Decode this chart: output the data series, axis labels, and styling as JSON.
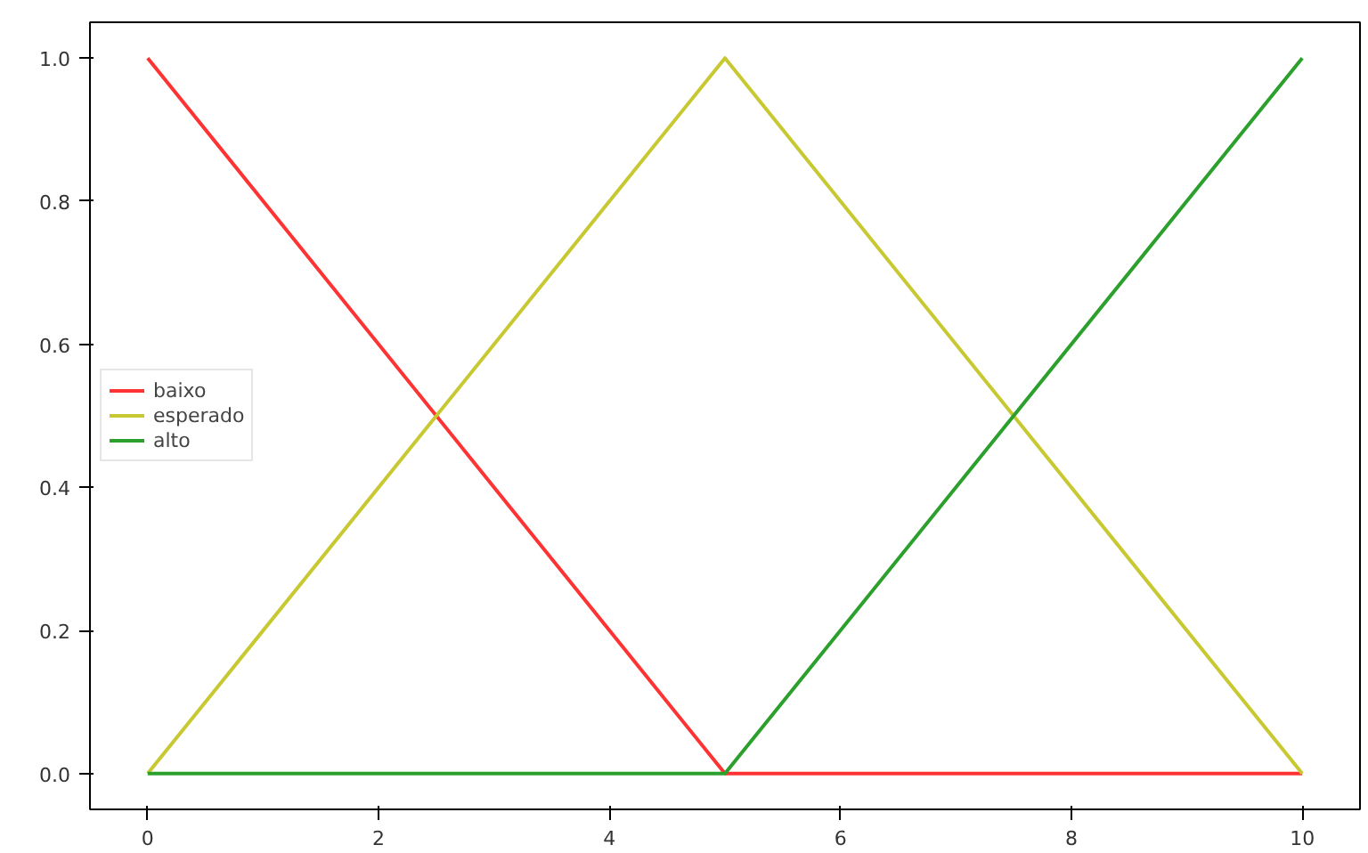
{
  "chart_data": {
    "type": "line",
    "x": [
      0,
      5,
      10
    ],
    "series": [
      {
        "name": "baixo",
        "color": "#ff3333",
        "values": [
          1,
          0,
          0
        ]
      },
      {
        "name": "esperado",
        "color": "#c8c832",
        "values": [
          0,
          1,
          0
        ]
      },
      {
        "name": "alto",
        "color": "#2ca02c",
        "values": [
          0,
          0,
          1
        ]
      }
    ],
    "xlim": [
      -0.5,
      10.5
    ],
    "ylim": [
      -0.05,
      1.05
    ],
    "xticks": [
      0,
      2,
      4,
      6,
      8,
      10
    ],
    "yticks": [
      {
        "value": 0,
        "label": "0.0"
      },
      {
        "value": 0.2,
        "label": "0.2"
      },
      {
        "value": 0.4,
        "label": "0.4"
      },
      {
        "value": 0.6,
        "label": "0.6"
      },
      {
        "value": 0.8,
        "label": "0.8"
      },
      {
        "value": 1,
        "label": "1.0"
      }
    ],
    "grid": false,
    "legend": "left",
    "marker": "none",
    "line_style": "solid"
  }
}
